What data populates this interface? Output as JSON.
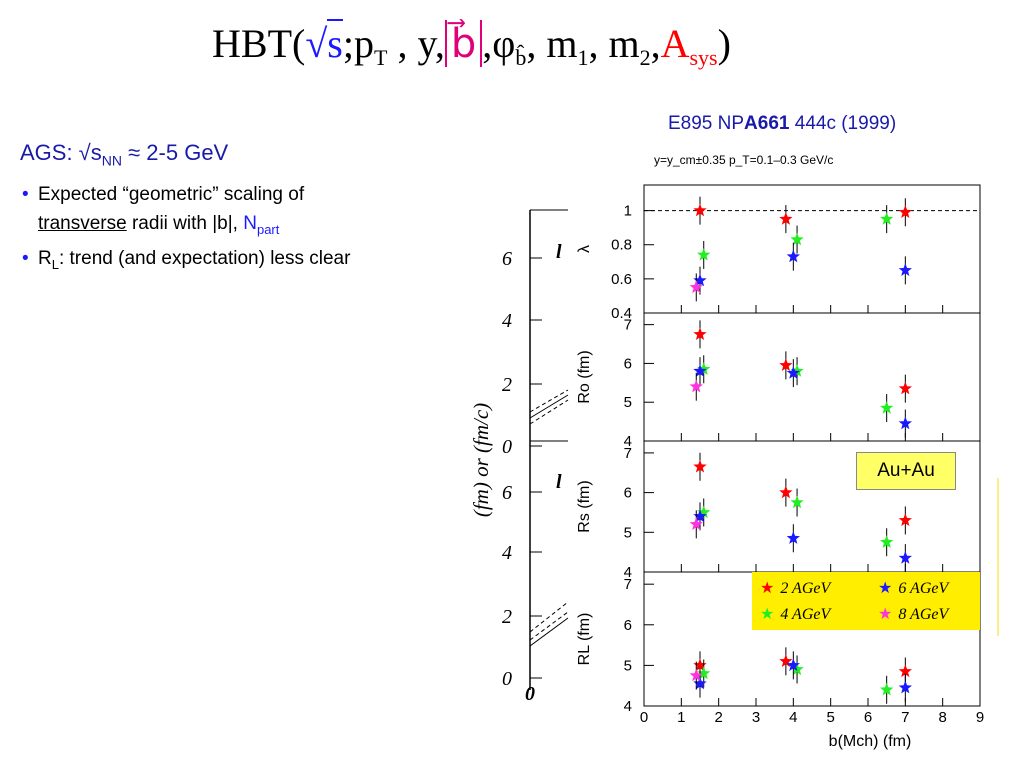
{
  "formula": {
    "prefix": "HBT(",
    "sqrt": "√",
    "s": "s",
    "sep1": ";",
    "pT": "p",
    "pT_sub": "T",
    "mid": " , y,",
    "b": "b⃗",
    "sep2": ",",
    "phi": "φ",
    "phi_sub": "b̂",
    "ms": ", m",
    "m1_sub": "1",
    "m2": ", m",
    "m2_sub": "2",
    "sep3": ",",
    "A": "A",
    "A_sub": "sys",
    "close": ")"
  },
  "reference": {
    "prefix": "E895 NP",
    "bold": "A661",
    "suffix": " 444c (1999)"
  },
  "ags": {
    "label": "AGS: √s",
    "sub": "NN",
    "rest": " ≈ 2-5 GeV"
  },
  "bullets": [
    {
      "a": "Expected “geometric” scaling of",
      "u": "transverse",
      "b": " radii with |b|, ",
      "np": "N",
      "npsub": "part"
    },
    {
      "a": "R",
      "sub": "L",
      "b": ": trend (and expectation) less clear"
    }
  ],
  "colors": {
    "e2": "#ff0000",
    "e4": "#22ee22",
    "e6": "#1a1aff",
    "e8": "#ff33dd",
    "highlight": "#ffee00",
    "text_blue": "#1a1aaa"
  },
  "chart_data": [
    {
      "type": "scatter",
      "title": "y=y_cm±0.35   p_T=0.1–0.3 GeV/c",
      "xlabel": "b(M_ch) (fm)",
      "xlim": [
        0,
        9
      ],
      "xticks": [
        "0",
        "1",
        "2",
        "3",
        "4",
        "5",
        "6",
        "7",
        "8",
        "9"
      ],
      "legend": {
        "placement": "inside-bottom-right",
        "entries": [
          "2 AGeV",
          "4 AGeV",
          "6 AGeV",
          "8 AGeV"
        ]
      },
      "annotation": "Au+Au",
      "panels": [
        {
          "ylabel": "λ",
          "ylim": [
            0.4,
            1.15
          ],
          "yticks": [
            "0.4",
            "0.6",
            "0.8",
            "1"
          ],
          "reference_line": 1,
          "series": [
            {
              "name": "2 AGeV",
              "points": [
                [
                  1.5,
                  1.0
                ],
                [
                  3.8,
                  0.95
                ],
                [
                  7.0,
                  0.99
                ]
              ]
            },
            {
              "name": "4 AGeV",
              "points": [
                [
                  1.6,
                  0.74
                ],
                [
                  4.1,
                  0.83
                ],
                [
                  6.5,
                  0.95
                ]
              ]
            },
            {
              "name": "6 AGeV",
              "points": [
                [
                  1.5,
                  0.59
                ],
                [
                  4.0,
                  0.73
                ],
                [
                  7.0,
                  0.65
                ]
              ]
            },
            {
              "name": "8 AGeV",
              "points": [
                [
                  1.4,
                  0.55
                ]
              ]
            }
          ]
        },
        {
          "ylabel": "R_o (fm)",
          "ylim": [
            4,
            7.3
          ],
          "yticks": [
            "4",
            "5",
            "6",
            "7"
          ],
          "series": [
            {
              "name": "2 AGeV",
              "points": [
                [
                  1.5,
                  6.75
                ],
                [
                  3.8,
                  5.95
                ],
                [
                  7.0,
                  5.35
                ]
              ]
            },
            {
              "name": "4 AGeV",
              "points": [
                [
                  1.6,
                  5.85
                ],
                [
                  4.1,
                  5.8
                ],
                [
                  6.5,
                  4.85
                ]
              ]
            },
            {
              "name": "6 AGeV",
              "points": [
                [
                  1.5,
                  5.8
                ],
                [
                  4.0,
                  5.75
                ],
                [
                  7.0,
                  4.45
                ]
              ]
            },
            {
              "name": "8 AGeV",
              "points": [
                [
                  1.4,
                  5.4
                ]
              ]
            }
          ]
        },
        {
          "ylabel": "R_s (fm)",
          "ylim": [
            4,
            7.3
          ],
          "yticks": [
            "4",
            "5",
            "6",
            "7"
          ],
          "series": [
            {
              "name": "2 AGeV",
              "points": [
                [
                  1.5,
                  6.65
                ],
                [
                  3.8,
                  6.0
                ],
                [
                  7.0,
                  5.3
                ]
              ]
            },
            {
              "name": "4 AGeV",
              "points": [
                [
                  1.6,
                  5.5
                ],
                [
                  4.1,
                  5.75
                ],
                [
                  6.5,
                  4.75
                ]
              ]
            },
            {
              "name": "6 AGeV",
              "points": [
                [
                  1.5,
                  5.4
                ],
                [
                  4.0,
                  4.85
                ],
                [
                  7.0,
                  4.35
                ]
              ]
            },
            {
              "name": "8 AGeV",
              "points": [
                [
                  1.4,
                  5.2
                ]
              ]
            }
          ]
        },
        {
          "ylabel": "R_L (fm)",
          "ylim": [
            4,
            7.3
          ],
          "yticks": [
            "4",
            "5",
            "6",
            "7"
          ],
          "series": [
            {
              "name": "2 AGeV",
              "points": [
                [
                  1.5,
                  5.0
                ],
                [
                  3.8,
                  5.1
                ],
                [
                  7.0,
                  4.85
                ]
              ]
            },
            {
              "name": "4 AGeV",
              "points": [
                [
                  1.6,
                  4.8
                ],
                [
                  4.1,
                  4.9
                ],
                [
                  6.5,
                  4.4
                ]
              ]
            },
            {
              "name": "6 AGeV",
              "points": [
                [
                  1.5,
                  4.55
                ],
                [
                  4.0,
                  5.0
                ],
                [
                  7.0,
                  4.45
                ]
              ]
            },
            {
              "name": "8 AGeV",
              "points": [
                [
                  1.4,
                  4.75
                ]
              ]
            }
          ]
        }
      ]
    },
    {
      "type": "line",
      "note": "partially visible background plot",
      "ylabel": "(fm) or (fm/c)",
      "yticks_top": [
        "0",
        "2",
        "4",
        "6"
      ],
      "yticks_bottom": [
        "0",
        "2",
        "4",
        "6"
      ],
      "xticks": [
        "0"
      ]
    }
  ]
}
